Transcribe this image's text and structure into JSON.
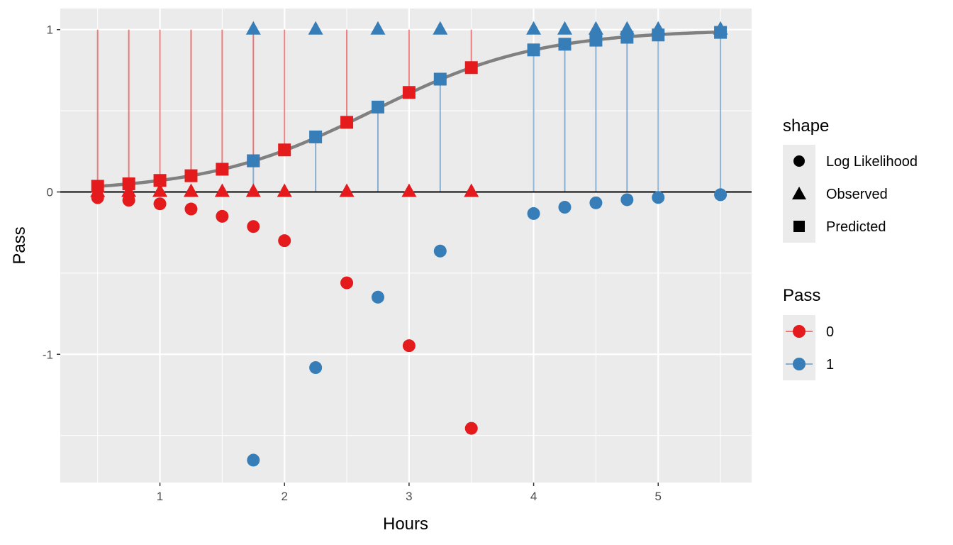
{
  "chart_data": {
    "type": "scatter",
    "title": "",
    "xlabel": "Hours",
    "ylabel": "Pass",
    "xlim": [
      0.2,
      5.75
    ],
    "ylim": [
      -1.79,
      1.13
    ],
    "x_ticks": [
      1,
      2,
      3,
      4,
      5
    ],
    "y_ticks": [
      -1,
      0,
      1
    ],
    "x_tick_labels": [
      "1",
      "2",
      "3",
      "4",
      "5"
    ],
    "y_tick_labels": [
      "-1",
      "0",
      "1"
    ],
    "grid": true,
    "legend_position": "right",
    "colors": {
      "pass_0": "#E41A1C",
      "pass_1": "#377EB8",
      "curve": "#808080",
      "panel": "#EBEBEB"
    },
    "fitted_curve": {
      "intercept": -4.0777,
      "slope": 1.5046
    },
    "hours": [
      0.5,
      0.75,
      1.0,
      1.25,
      1.5,
      1.75,
      1.75,
      2.0,
      2.25,
      2.5,
      2.75,
      3.0,
      3.25,
      3.5,
      4.0,
      4.25,
      4.5,
      4.75,
      5.0,
      5.5
    ],
    "observed": [
      0,
      0,
      0,
      0,
      0,
      0,
      1,
      0,
      1,
      0,
      1,
      0,
      1,
      0,
      1,
      1,
      1,
      1,
      1,
      1
    ],
    "predicted": [
      0.035,
      0.05,
      0.071,
      0.1,
      0.14,
      0.192,
      0.192,
      0.259,
      0.339,
      0.429,
      0.523,
      0.613,
      0.695,
      0.766,
      0.875,
      0.91,
      0.935,
      0.953,
      0.967,
      0.983
    ],
    "log_likelihood": [
      -0.035,
      -0.051,
      -0.073,
      -0.105,
      -0.15,
      -0.213,
      -1.652,
      -0.3,
      -1.082,
      -0.56,
      -0.648,
      -0.947,
      -0.364,
      -1.456,
      -0.133,
      -0.094,
      -0.067,
      -0.048,
      -0.034,
      -0.017
    ],
    "legends": [
      {
        "title": "shape",
        "entries": [
          "Log Likelihood",
          "Observed",
          "Predicted"
        ]
      },
      {
        "title": "Pass",
        "entries": [
          "0",
          "1"
        ]
      }
    ]
  }
}
